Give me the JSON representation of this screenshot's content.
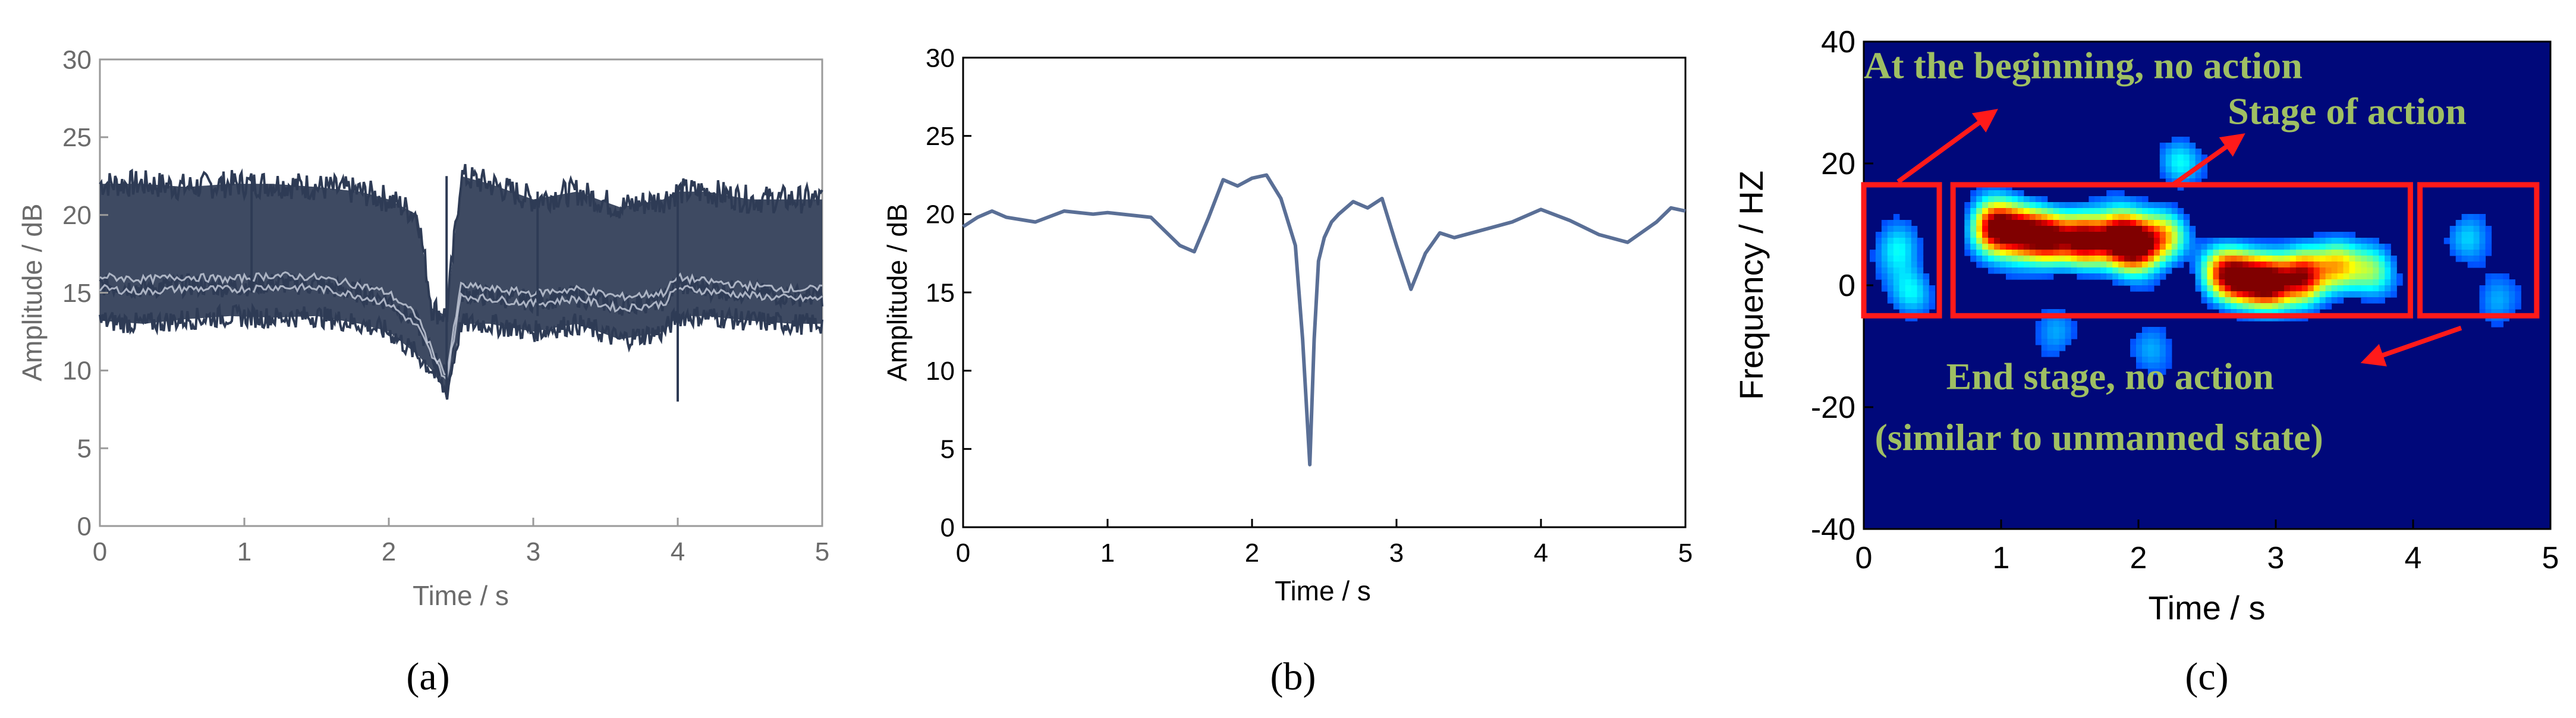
{
  "chart_data": [
    {
      "type": "line",
      "caption": "(a)",
      "xlabel": "Time / s",
      "ylabel": "Amplitude / dB",
      "xlim": [
        0,
        5
      ],
      "ylim": [
        0,
        30
      ],
      "xticks": [
        0,
        1,
        2,
        3,
        4,
        5
      ],
      "yticks": [
        0,
        5,
        10,
        15,
        20,
        25,
        30
      ],
      "grid": false,
      "box": true,
      "color": "#2e3b55",
      "series": [
        {
          "x": [
            0.0,
            0.3,
            0.6,
            0.9,
            1.2,
            1.5,
            1.8,
            2.0,
            2.2,
            2.3,
            2.4,
            2.5,
            2.7,
            3.0,
            3.3,
            3.6,
            3.9,
            4.0,
            4.2,
            4.5,
            4.8,
            5.0
          ],
          "values": [
            22.0,
            22.0,
            21.8,
            22.0,
            22.0,
            21.8,
            21.5,
            21.0,
            20.0,
            14.0,
            13.5,
            22.5,
            22.0,
            21.0,
            21.5,
            20.5,
            21.0,
            21.5,
            21.5,
            21.0,
            21.0,
            21.0
          ]
        },
        {
          "x": [
            0.0,
            0.3,
            0.6,
            0.9,
            1.2,
            1.5,
            1.8,
            2.0,
            2.2,
            2.3,
            2.4,
            2.5,
            2.7,
            3.0,
            3.3,
            3.6,
            3.9,
            4.0,
            4.2,
            4.5,
            4.8,
            5.0
          ],
          "values": [
            15.5,
            15.3,
            15.5,
            15.4,
            15.6,
            15.5,
            15.0,
            14.5,
            13.0,
            11.0,
            9.5,
            15.0,
            14.8,
            14.5,
            14.8,
            14.2,
            14.5,
            15.5,
            15.3,
            15.0,
            14.8,
            14.8
          ]
        },
        {
          "x": [
            0.0,
            0.3,
            0.6,
            0.9,
            1.2,
            1.5,
            1.8,
            2.0,
            2.2,
            2.3,
            2.4,
            2.5,
            2.7,
            3.0,
            3.3,
            3.6,
            3.9,
            4.0,
            4.2,
            4.5,
            4.8,
            5.0
          ],
          "values": [
            13.2,
            13.0,
            13.3,
            13.5,
            13.4,
            13.5,
            13.0,
            12.5,
            11.0,
            10.0,
            8.5,
            13.0,
            13.0,
            12.5,
            13.0,
            12.0,
            12.5,
            13.5,
            13.5,
            13.2,
            13.0,
            13.0
          ]
        }
      ]
    },
    {
      "type": "line",
      "caption": "(b)",
      "xlabel": "Time / s",
      "ylabel": "Amplitude / dB",
      "xlim": [
        0,
        5
      ],
      "ylim": [
        0,
        30
      ],
      "xticks": [
        0,
        1,
        2,
        3,
        4,
        5
      ],
      "yticks": [
        0,
        5,
        10,
        15,
        20,
        25,
        30
      ],
      "grid": false,
      "box": true,
      "color": "#5a6f96",
      "x": [
        0.0,
        0.1,
        0.2,
        0.3,
        0.5,
        0.7,
        0.9,
        1.0,
        1.3,
        1.5,
        1.6,
        1.7,
        1.8,
        1.9,
        2.0,
        2.1,
        2.2,
        2.3,
        2.35,
        2.4,
        2.43,
        2.46,
        2.5,
        2.55,
        2.6,
        2.7,
        2.8,
        2.9,
        3.0,
        3.1,
        3.2,
        3.3,
        3.4,
        3.6,
        3.8,
        4.0,
        4.2,
        4.4,
        4.6,
        4.8,
        4.9,
        5.0
      ],
      "values": [
        19.2,
        19.8,
        20.2,
        19.8,
        19.5,
        20.2,
        20.0,
        20.1,
        19.8,
        18.0,
        17.6,
        19.8,
        22.2,
        21.8,
        22.3,
        22.5,
        21.0,
        18.0,
        12.0,
        4.0,
        12.0,
        17.0,
        18.5,
        19.5,
        20.0,
        20.8,
        20.4,
        21.0,
        18.0,
        15.2,
        17.5,
        18.8,
        18.5,
        19.0,
        19.5,
        20.3,
        19.6,
        18.7,
        18.2,
        19.5,
        20.4,
        20.2
      ]
    },
    {
      "type": "heatmap",
      "caption": "(c)",
      "xlabel": "Time / s",
      "ylabel": "Frequency / HZ",
      "xlim": [
        0,
        5
      ],
      "ylim": [
        -40,
        40
      ],
      "xticks": [
        0,
        1,
        2,
        3,
        4,
        5
      ],
      "yticks": [
        -40,
        -20,
        0,
        20,
        40
      ],
      "colormap": "jet",
      "blobs": [
        {
          "t": 0.95,
          "f": 9.5,
          "a": 1.0
        },
        {
          "t": 1.15,
          "f": 8.5,
          "a": 0.85
        },
        {
          "t": 1.35,
          "f": 7.8,
          "a": 0.95
        },
        {
          "t": 1.6,
          "f": 7.5,
          "a": 1.0
        },
        {
          "t": 1.85,
          "f": 7.8,
          "a": 0.95
        },
        {
          "t": 2.0,
          "f": 6.5,
          "a": 0.9
        },
        {
          "t": 2.2,
          "f": 8.0,
          "a": 0.55
        },
        {
          "t": 2.6,
          "f": 2.0,
          "a": 0.65
        },
        {
          "t": 2.75,
          "f": 1.0,
          "a": 0.8
        },
        {
          "t": 2.95,
          "f": 0.5,
          "a": 1.0
        },
        {
          "t": 3.2,
          "f": 1.5,
          "a": 0.95
        },
        {
          "t": 3.45,
          "f": 3.0,
          "a": 0.6
        },
        {
          "t": 3.7,
          "f": 2.5,
          "a": 0.4
        },
        {
          "t": 0.25,
          "f": 6.0,
          "a": 0.3
        },
        {
          "t": 0.35,
          "f": -1.0,
          "a": 0.25
        },
        {
          "t": 2.3,
          "f": 20.0,
          "a": 0.3
        },
        {
          "t": 4.4,
          "f": 8.0,
          "a": 0.25
        },
        {
          "t": 4.6,
          "f": -3.0,
          "a": 0.2
        },
        {
          "t": 1.4,
          "f": -8.0,
          "a": 0.2
        },
        {
          "t": 2.1,
          "f": -10.0,
          "a": 0.18
        }
      ],
      "regions": [
        {
          "name": "initial",
          "t0": 0.0,
          "t1": 0.55,
          "f0": -5.0,
          "f1": 16.5
        },
        {
          "name": "action",
          "t0": 0.65,
          "t1": 3.98,
          "f0": -5.0,
          "f1": 16.5
        },
        {
          "name": "end",
          "t0": 4.05,
          "t1": 4.9,
          "f0": -5.0,
          "f1": 16.5
        }
      ],
      "box_color": "#ff1a1a",
      "annotation_color": "#9fbf63",
      "annotations": [
        {
          "text": "At the beginning, no action",
          "t": 0.0,
          "f": 34.0
        },
        {
          "text": "Stage of action",
          "t": 2.65,
          "f": 26.5
        },
        {
          "text": "End stage, no action",
          "t": 0.6,
          "f": -17.0
        },
        {
          "text": "(similar to unmanned state)",
          "t": 0.08,
          "f": -27.0
        }
      ],
      "arrows": [
        {
          "t0": 0.25,
          "f0": 17.0,
          "t1": 0.95,
          "f1": 28.5
        },
        {
          "t0": 2.25,
          "f0": 16.5,
          "t1": 2.75,
          "f1": 24.5
        },
        {
          "t0": 4.35,
          "f0": -7.0,
          "t1": 3.65,
          "f1": -12.5
        }
      ]
    }
  ]
}
